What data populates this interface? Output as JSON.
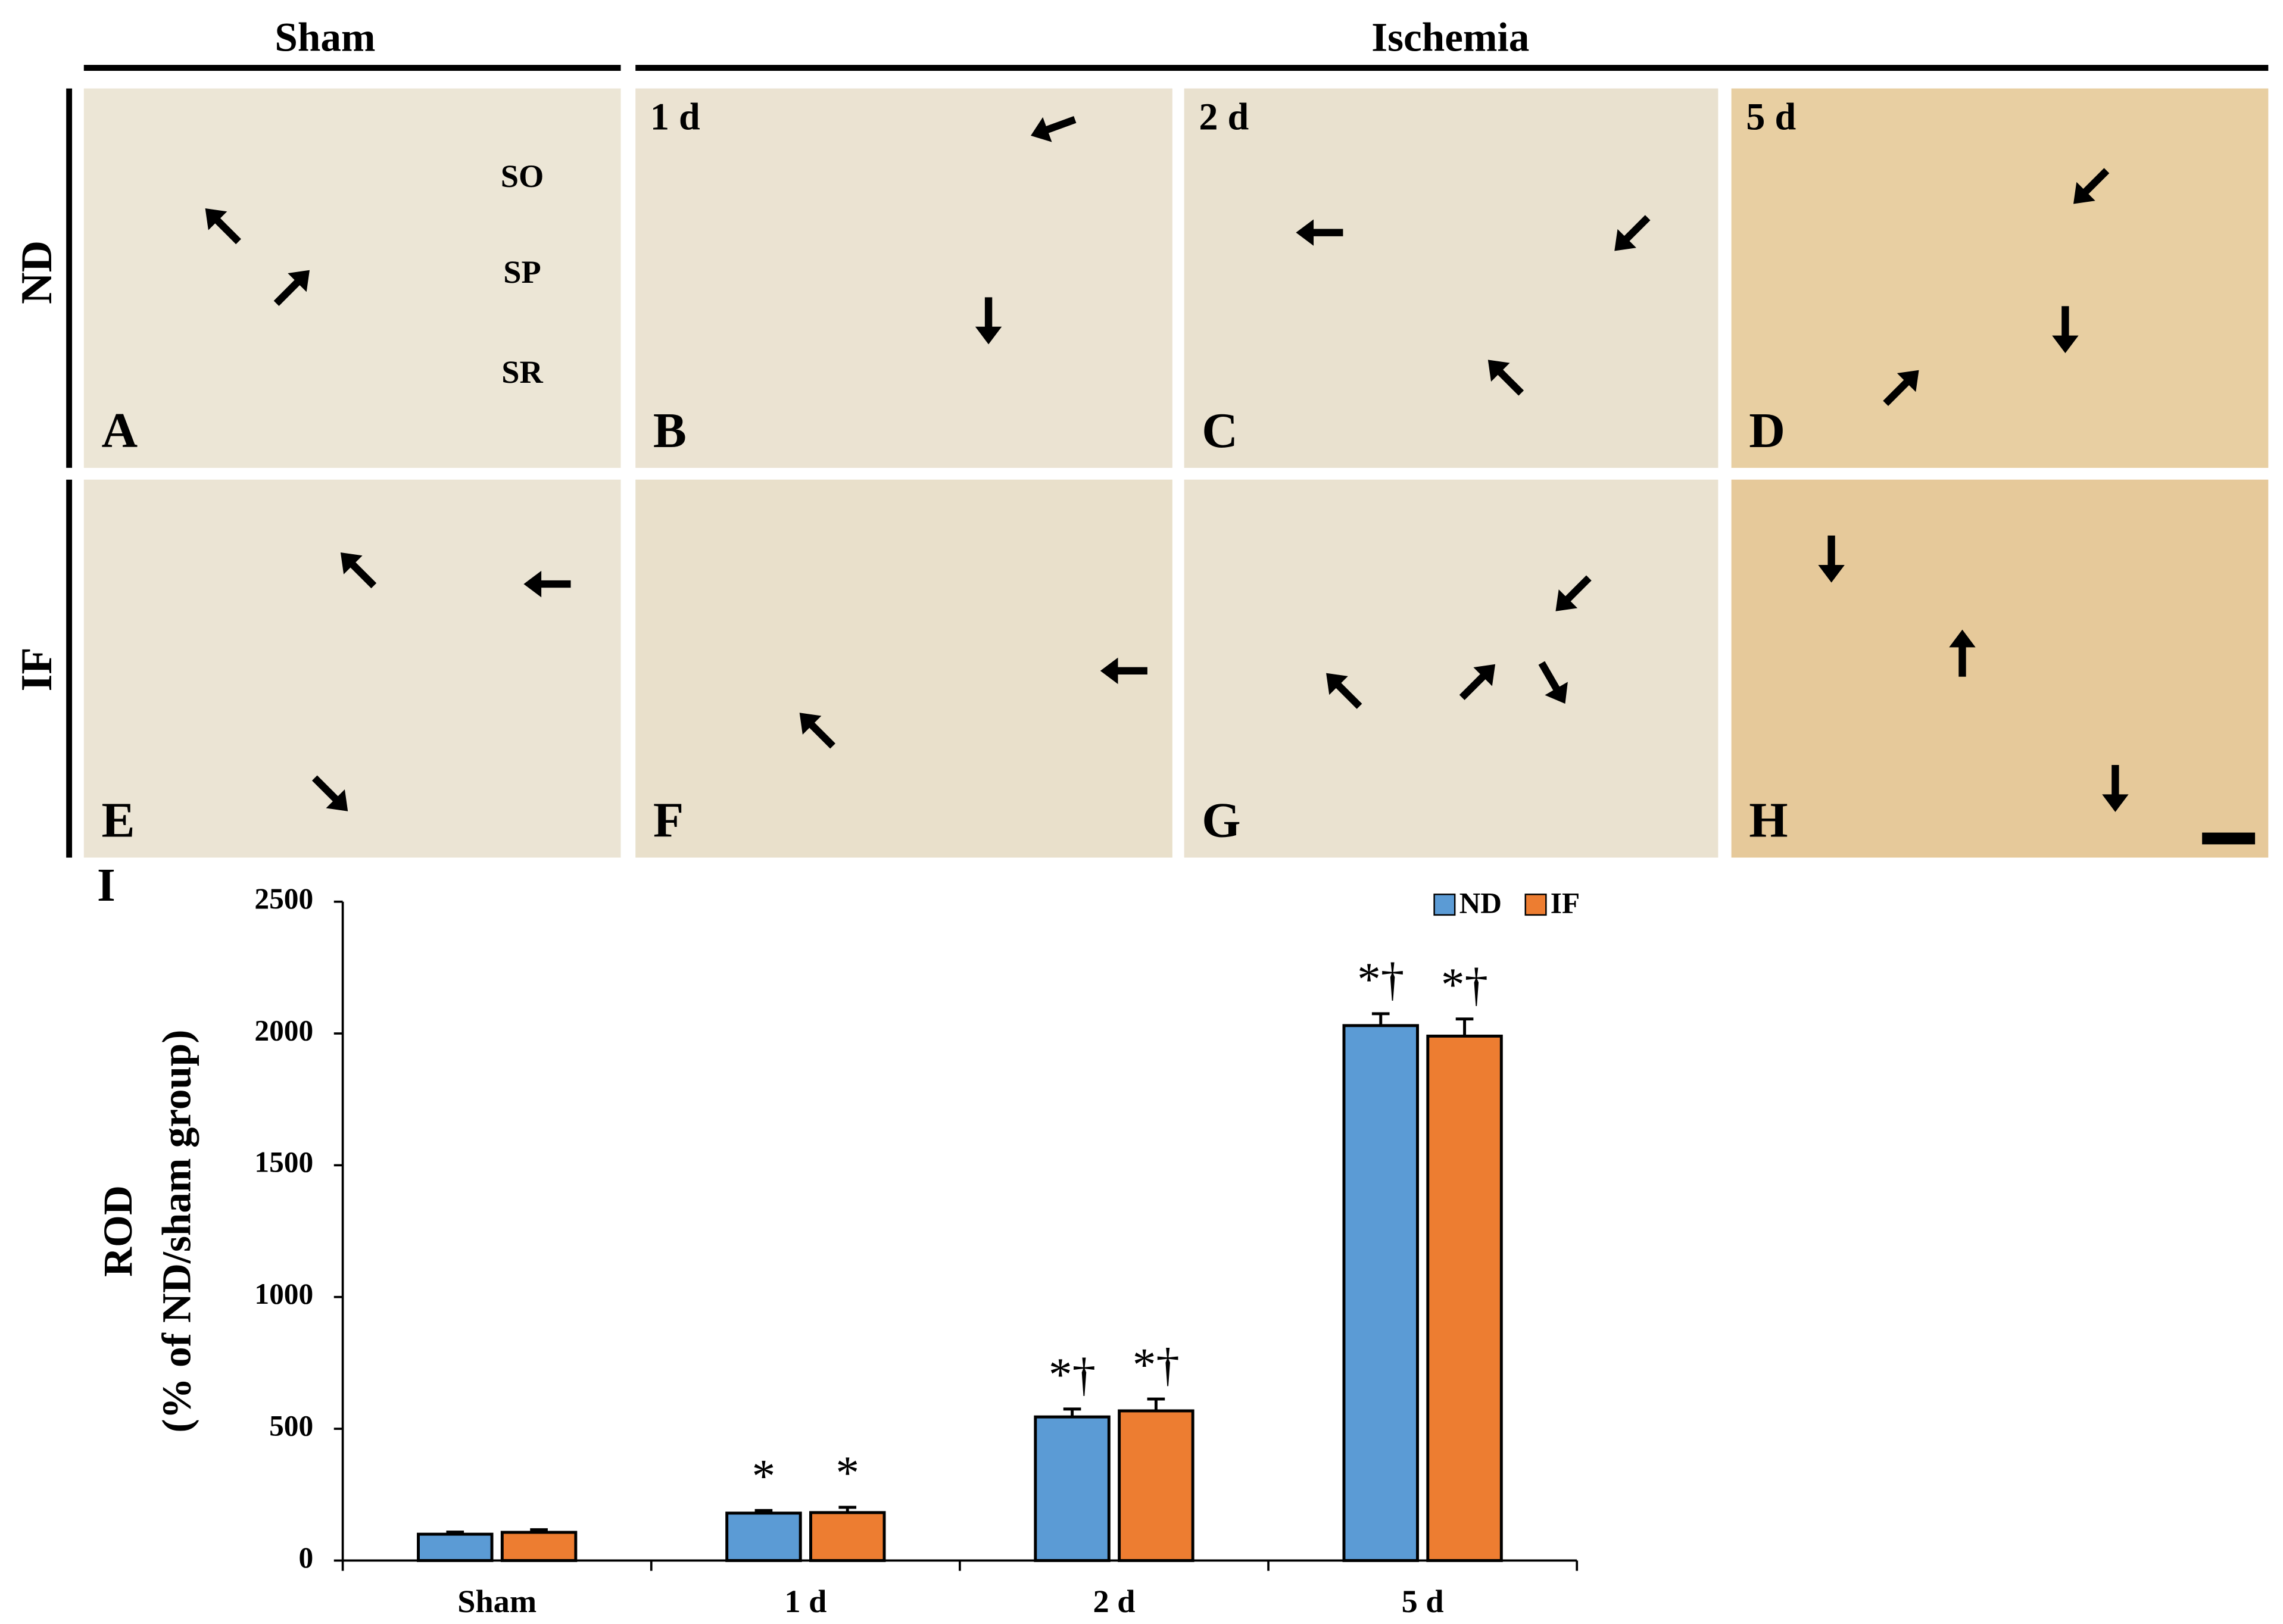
{
  "figure": {
    "column_headers": [
      "Sham",
      "Ischemia"
    ],
    "row_labels": [
      "ND",
      "IF"
    ],
    "layers": [
      "SO",
      "SP",
      "SR"
    ],
    "panels": [
      {
        "label": "A"
      },
      {
        "label": "B",
        "time": "1 d"
      },
      {
        "label": "C",
        "time": "2 d"
      },
      {
        "label": "D",
        "time": "5 d"
      },
      {
        "label": "E"
      },
      {
        "label": "F"
      },
      {
        "label": "G"
      },
      {
        "label": "H"
      }
    ]
  },
  "chart_data": {
    "type": "bar",
    "panel_label": "I",
    "y_label": [
      "ROD",
      "(% of ND/sham group)"
    ],
    "categories": [
      "Sham",
      "1 d",
      "2 d",
      "5 d"
    ],
    "series": [
      {
        "name": "ND",
        "color": "#5b9bd5",
        "values": [
          100,
          180,
          545,
          2030
        ],
        "errors": [
          8,
          10,
          30,
          45
        ],
        "markers": [
          null,
          "*",
          "*†",
          "*†"
        ]
      },
      {
        "name": "IF",
        "color": "#ed7d31",
        "values": [
          107,
          182,
          568,
          1990
        ],
        "errors": [
          10,
          20,
          45,
          65
        ],
        "markers": [
          null,
          "*",
          "*†",
          "*†"
        ]
      }
    ],
    "ylim": [
      0,
      2500
    ],
    "yticks": [
      0,
      500,
      1000,
      1500,
      2000,
      2500
    ],
    "legend": "top-right"
  }
}
